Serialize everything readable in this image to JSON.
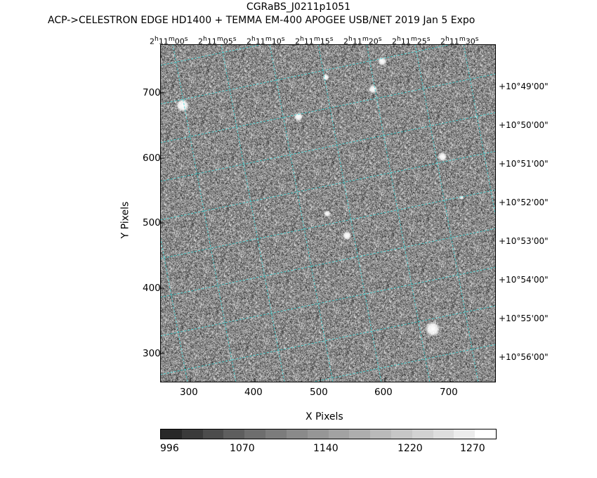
{
  "header": {
    "title": "CGRaBS_J0211p1051",
    "subtitle": "ACP->CELESTRON EDGE HD1400 + TEMMA EM-400 APOGEE USB/NET   2019 Jan  5    Expo"
  },
  "axes": {
    "xlabel": "X Pixels",
    "ylabel": "Y Pixels",
    "x_ticks": [
      "300",
      "400",
      "500",
      "600",
      "700"
    ],
    "y_ticks": [
      "700",
      "600",
      "500",
      "400",
      "300"
    ],
    "ra_ticks": [
      {
        "h": "2",
        "m": "11",
        "s": "00"
      },
      {
        "h": "2",
        "m": "11",
        "s": "05"
      },
      {
        "h": "2",
        "m": "11",
        "s": "10"
      },
      {
        "h": "2",
        "m": "11",
        "s": "15"
      },
      {
        "h": "2",
        "m": "11",
        "s": "20"
      },
      {
        "h": "2",
        "m": "11",
        "s": "25"
      },
      {
        "h": "2",
        "m": "11",
        "s": "30"
      }
    ],
    "dec_ticks": [
      "+10°49'00\"",
      "+10°50'00\"",
      "+10°51'00\"",
      "+10°52'00\"",
      "+10°53'00\"",
      "+10°54'00\"",
      "+10°55'00\"",
      "+10°56'00\""
    ]
  },
  "colorbar": {
    "labels": [
      "996",
      "1070",
      "1140",
      "1220",
      "1270"
    ]
  },
  "colors": {
    "grid": "#3fd4d4",
    "frame": "#000000"
  }
}
